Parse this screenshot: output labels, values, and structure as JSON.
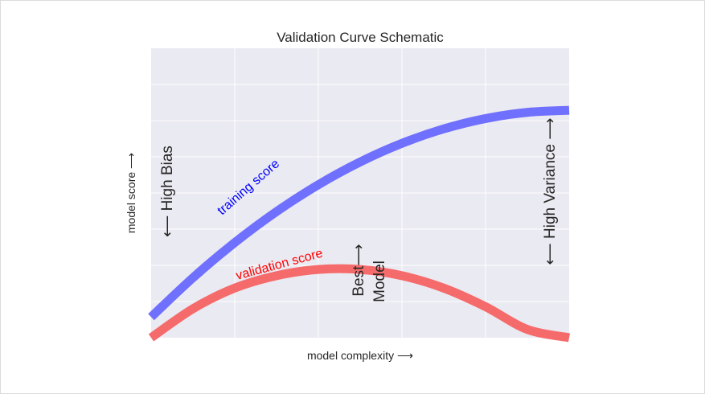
{
  "chart_data": {
    "type": "line",
    "title": "Validation Curve Schematic",
    "xlabel": "model complexity ⟶",
    "ylabel": "model score ⟶",
    "xlim": [
      0,
      1
    ],
    "ylim": [
      -0.1,
      1.3
    ],
    "grid": true,
    "axis_tick_labels": "none",
    "series": [
      {
        "name": "training score",
        "color": "#7070ff",
        "label_color": "#0000ff",
        "x": [
          0,
          0.1,
          0.2,
          0.3,
          0.4,
          0.5,
          0.6,
          0.7,
          0.8,
          0.9,
          1.0
        ],
        "y": [
          0.0,
          0.19,
          0.36,
          0.51,
          0.64,
          0.75,
          0.84,
          0.91,
          0.96,
          0.99,
          1.0
        ]
      },
      {
        "name": "validation score",
        "color": "#f56b6b",
        "label_color": "#ff0000",
        "x": [
          0,
          0.1,
          0.2,
          0.3,
          0.4,
          0.5,
          0.6,
          0.7,
          0.8,
          0.9,
          1.0
        ],
        "y": [
          -0.1,
          0.04,
          0.14,
          0.2,
          0.23,
          0.23,
          0.2,
          0.14,
          0.05,
          -0.06,
          -0.1
        ]
      }
    ],
    "annotations": [
      {
        "text": "⟵ High Bias"
      },
      {
        "text": "⟵ High Variance ⟶"
      },
      {
        "line1": "Best⟶",
        "line2": "Model"
      }
    ]
  }
}
